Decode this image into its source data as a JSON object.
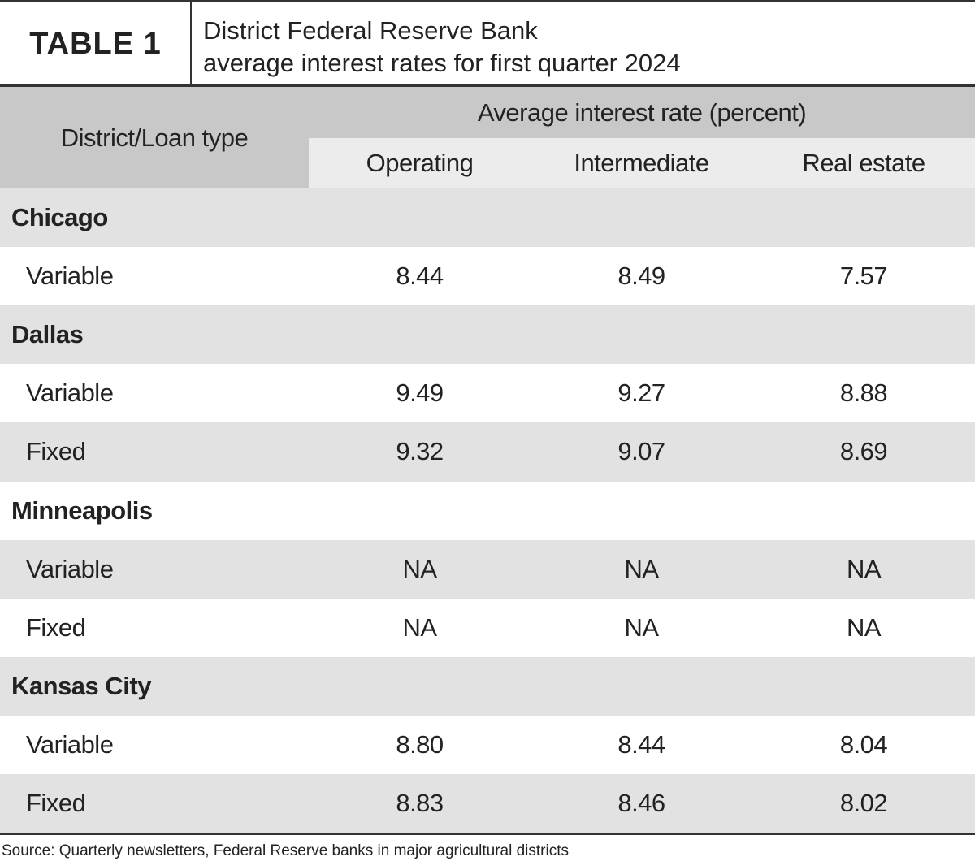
{
  "header": {
    "label": "TABLE 1",
    "title_lines": [
      "District Federal Reserve Bank",
      "average interest rates for first quarter 2024"
    ]
  },
  "table": {
    "corner": "District/Loan type",
    "group_header": "Average interest rate (percent)",
    "columns": [
      "Operating",
      "Intermediate",
      "Real estate"
    ],
    "groups": [
      {
        "district": "Chicago",
        "rows": [
          {
            "type": "Variable",
            "values": [
              "8.44",
              "8.49",
              "7.57"
            ]
          }
        ]
      },
      {
        "district": "Dallas",
        "rows": [
          {
            "type": "Variable",
            "values": [
              "9.49",
              "9.27",
              "8.88"
            ]
          },
          {
            "type": "Fixed",
            "values": [
              "9.32",
              "9.07",
              "8.69"
            ]
          }
        ]
      },
      {
        "district": "Minneapolis",
        "rows": [
          {
            "type": "Variable",
            "values": [
              "NA",
              "NA",
              "NA"
            ]
          },
          {
            "type": "Fixed",
            "values": [
              "NA",
              "NA",
              "NA"
            ]
          }
        ]
      },
      {
        "district": "Kansas City",
        "rows": [
          {
            "type": "Variable",
            "values": [
              "8.80",
              "8.44",
              "8.04"
            ]
          },
          {
            "type": "Fixed",
            "values": [
              "8.83",
              "8.46",
              "8.02"
            ]
          }
        ]
      }
    ]
  },
  "source": "Source: Quarterly newsletters, Federal Reserve banks in major agricultural districts"
}
